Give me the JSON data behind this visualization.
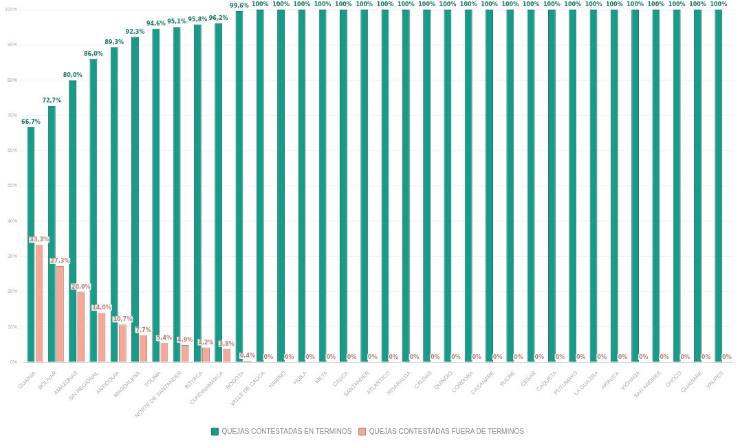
{
  "chart_data": {
    "type": "bar",
    "categories": [
      "GUAINIA",
      "BOLIVAR",
      "AMAZONAS",
      "SIN REGIONAL",
      "ANTIOQUIA",
      "MAGDALENA",
      "TOLIMA",
      "NORTE DE SANTANDER",
      "BOYACA",
      "CUNDINAMARCA",
      "BOGOTA",
      "VALLE DE CAUCA",
      "NARIÑO",
      "HUILA",
      "META",
      "CAUCA",
      "SANTANDER",
      "ATLANTICO",
      "RISARALDA",
      "CALDAS",
      "QUINDIO",
      "CORDOBA",
      "CASANARE",
      "SUCRE",
      "CESAR",
      "CAQUETA",
      "PUTUMAYO",
      "LA GUAJIRA",
      "ARAUCA",
      "VICHADA",
      "SAN ANDRES",
      "CHOCO",
      "GUAVIARE",
      "VAUPES"
    ],
    "series": [
      {
        "name": "QUEJAS CONTESTADAS EN TERMINOS",
        "color": "#1a9a88",
        "values": [
          66.7,
          72.7,
          80.0,
          86.0,
          89.3,
          92.3,
          94.6,
          95.1,
          95.8,
          96.2,
          99.6,
          100,
          100,
          100,
          100,
          100,
          100,
          100,
          100,
          100,
          100,
          100,
          100,
          100,
          100,
          100,
          100,
          100,
          100,
          100,
          100,
          100,
          100,
          100
        ],
        "value_labels": [
          "66,7%",
          "72,7%",
          "80,0%",
          "86,0%",
          "89,3%",
          "92,3%",
          "94,6%",
          "95,1%",
          "95,8%",
          "96,2%",
          "99,6%",
          "100%",
          "100%",
          "100%",
          "100%",
          "100%",
          "100%",
          "100%",
          "100%",
          "100%",
          "100%",
          "100%",
          "100%",
          "100%",
          "100%",
          "100%",
          "100%",
          "100%",
          "100%",
          "100%",
          "100%",
          "100%",
          "100%",
          "100%"
        ]
      },
      {
        "name": "QUEJAS CONTESTADAS FUERA DE TERMINOS",
        "color": "#f4a998",
        "values": [
          33.3,
          27.3,
          20.0,
          14.0,
          10.7,
          7.7,
          5.4,
          4.9,
          4.2,
          3.8,
          0.4,
          0,
          0,
          0,
          0,
          0,
          0,
          0,
          0,
          0,
          0,
          0,
          0,
          0,
          0,
          0,
          0,
          0,
          0,
          0,
          0,
          0,
          0,
          0
        ],
        "value_labels": [
          "33,3%",
          "27,3%",
          "20,0%",
          "14,0%",
          "10,7%",
          "7,7%",
          "5,4%",
          "4,9%",
          "4,2%",
          "3,8%",
          "0,4%",
          "0%",
          "0%",
          "0%",
          "0%",
          "0%",
          "0%",
          "0%",
          "0%",
          "0%",
          "0%",
          "0%",
          "0%",
          "0%",
          "0%",
          "0%",
          "0%",
          "0%",
          "0%",
          "0%",
          "0%",
          "0%",
          "0%",
          "0%"
        ]
      }
    ],
    "ylim": [
      0,
      100
    ],
    "yticks": [
      {
        "value": 0,
        "label": "0%"
      },
      {
        "value": 10,
        "label": "10%"
      },
      {
        "value": 20,
        "label": "20%"
      },
      {
        "value": 30,
        "label": "30%"
      },
      {
        "value": 40,
        "label": "40%"
      },
      {
        "value": 50,
        "label": "50%"
      },
      {
        "value": 60,
        "label": "60%"
      },
      {
        "value": 70,
        "label": "70%"
      },
      {
        "value": 80,
        "label": "80%"
      },
      {
        "value": 90,
        "label": "90%"
      },
      {
        "value": 100,
        "label": "100%"
      }
    ],
    "grid": "y",
    "legend": "bottom"
  }
}
